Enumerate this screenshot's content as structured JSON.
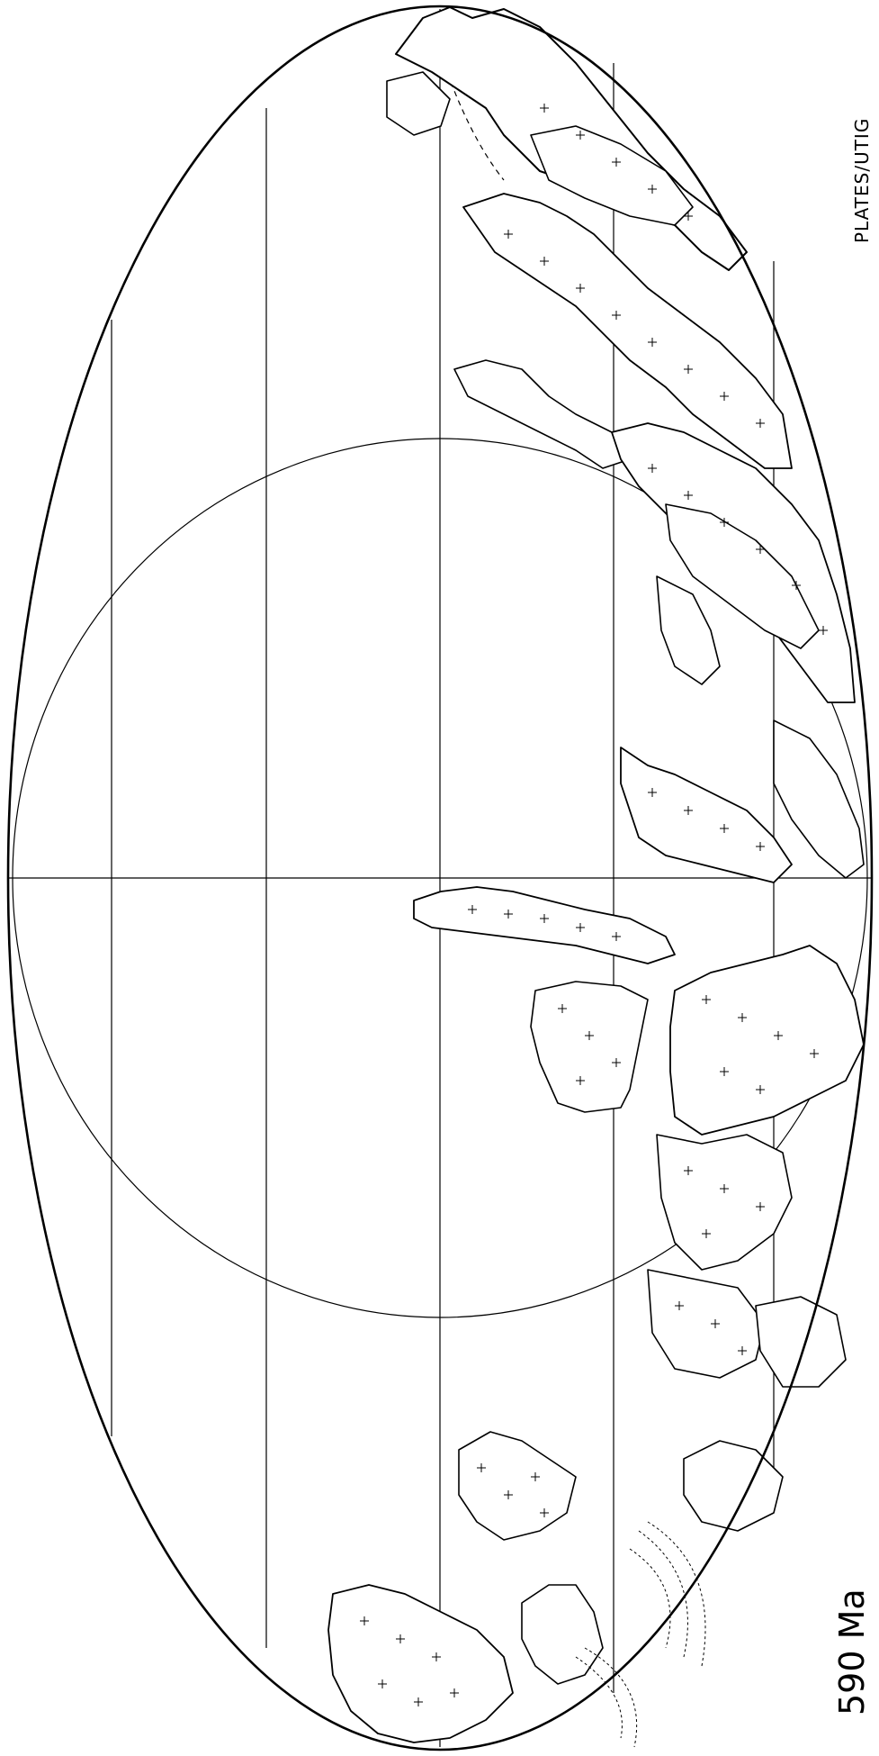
{
  "map": {
    "age_label": "590 Ma",
    "credit": "PLATES/UTIG",
    "projection": "Mollweide (rotated)",
    "colors": {
      "line": "#000000",
      "background": "#ffffff"
    }
  }
}
